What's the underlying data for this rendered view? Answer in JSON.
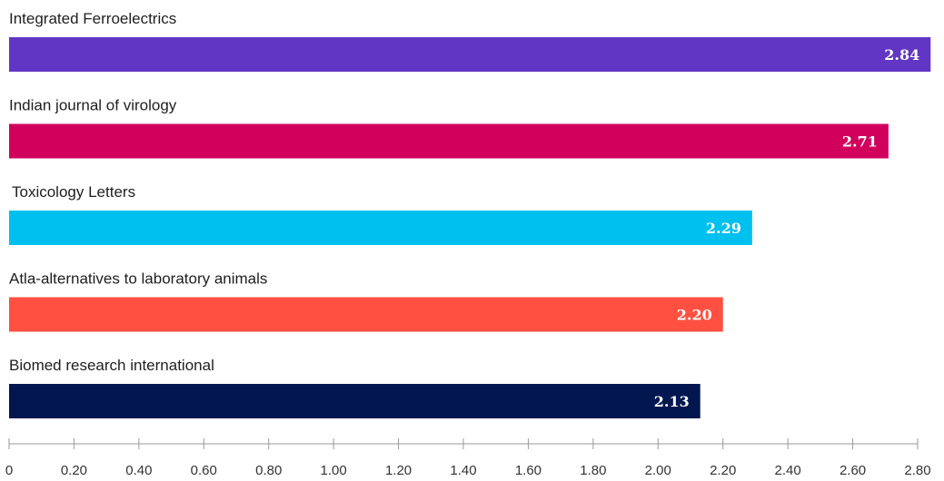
{
  "chart_data": {
    "type": "bar",
    "orientation": "horizontal",
    "categories": [
      "Integrated Ferroelectrics",
      "Indian journal of virology",
      "Toxicology Letters",
      "Atla-alternatives to laboratory animals",
      "Biomed research international"
    ],
    "values": [
      2.84,
      2.71,
      2.29,
      2.2,
      2.13
    ],
    "value_labels": [
      "2.84",
      "2.71",
      "2.29",
      "2.20",
      "2.13"
    ],
    "colors": [
      "#6236c5",
      "#d1005d",
      "#00c0ef",
      "#ff5041",
      "#021650"
    ],
    "xlim": [
      0,
      2.84
    ],
    "xticks": [
      0,
      0.2,
      0.4,
      0.6,
      0.8,
      1.0,
      1.2,
      1.4,
      1.6,
      1.8,
      2.0,
      2.2,
      2.4,
      2.6,
      2.8
    ],
    "xtick_labels": [
      "0",
      "0.20",
      "0.40",
      "0.60",
      "0.80",
      "1.00",
      "1.20",
      "1.40",
      "1.60",
      "1.80",
      "2.00",
      "2.20",
      "2.40",
      "2.60",
      "2.80"
    ],
    "grid": false,
    "legend": "none",
    "axis_color": "#9a9a9a"
  }
}
